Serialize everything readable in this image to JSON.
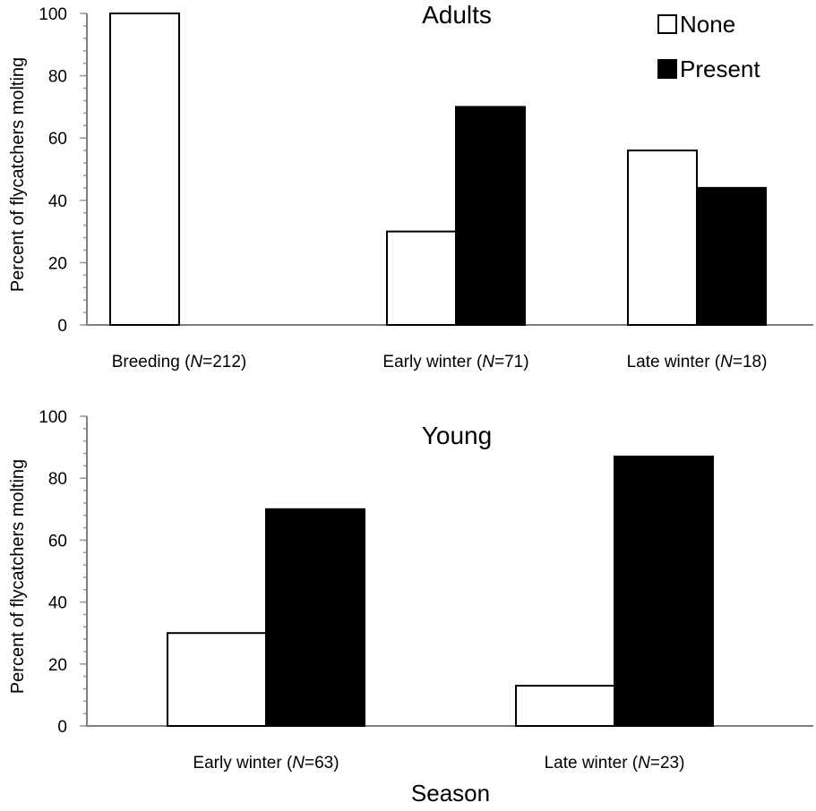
{
  "chart_data": [
    {
      "type": "bar",
      "title": "Adults",
      "ylabel": "Percent of flycatchers molting",
      "xlabel": "",
      "ylim": [
        0,
        100
      ],
      "yticks": [
        0,
        20,
        40,
        60,
        80,
        100
      ],
      "categories": [
        {
          "prefix": "Breeding (",
          "n": "N",
          "suffix": "=212)"
        },
        {
          "prefix": "Early winter (",
          "n": "N",
          "suffix": "=71)"
        },
        {
          "prefix": "Late winter (",
          "n": "N",
          "suffix": "=18)"
        }
      ],
      "series": [
        {
          "name": "None",
          "color": "#ffffff",
          "values": [
            100,
            30,
            56
          ]
        },
        {
          "name": "Present",
          "color": "#000000",
          "values": [
            0,
            70,
            44
          ]
        }
      ],
      "legend": {
        "position": "top-right",
        "entries": [
          "None",
          "Present"
        ]
      },
      "grid": false
    },
    {
      "type": "bar",
      "title": "Young",
      "ylabel": "Percent of flycatchers molting",
      "xlabel": "Season",
      "ylim": [
        0,
        100
      ],
      "yticks": [
        0,
        20,
        40,
        60,
        80,
        100
      ],
      "categories": [
        {
          "prefix": "Early winter (",
          "n": "N",
          "suffix": "=63)"
        },
        {
          "prefix": "Late winter (",
          "n": "N",
          "suffix": "=23)"
        }
      ],
      "series": [
        {
          "name": "None",
          "color": "#ffffff",
          "values": [
            30,
            13
          ]
        },
        {
          "name": "Present",
          "color": "#000000",
          "values": [
            70,
            87
          ]
        }
      ],
      "grid": false
    }
  ]
}
